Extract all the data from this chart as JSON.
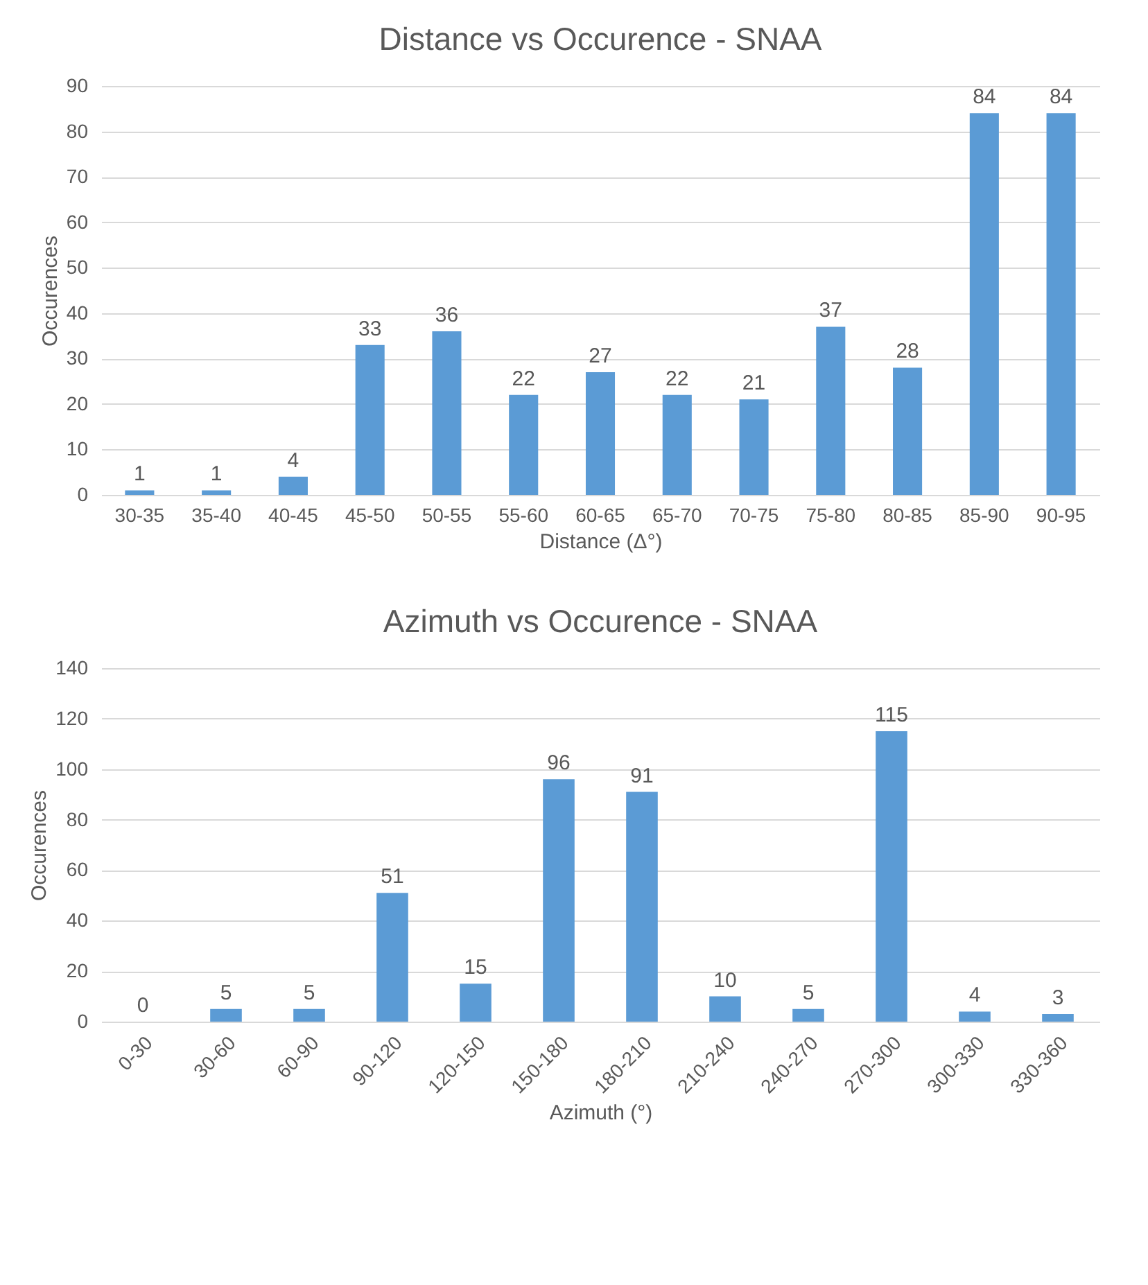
{
  "chart_data": [
    {
      "type": "bar",
      "title": "Distance vs Occurence - SNAA",
      "xlabel": "Distance (Δ°)",
      "ylabel": "Occurences",
      "categories": [
        "30-35",
        "35-40",
        "40-45",
        "45-50",
        "50-55",
        "55-60",
        "60-65",
        "65-70",
        "70-75",
        "75-80",
        "80-85",
        "85-90",
        "90-95"
      ],
      "values": [
        1,
        1,
        4,
        33,
        36,
        22,
        27,
        22,
        21,
        37,
        28,
        84,
        84
      ],
      "color": "#5b9bd5",
      "ylim": [
        0,
        90
      ],
      "yticks": [
        0,
        10,
        20,
        30,
        40,
        50,
        60,
        70,
        80,
        90
      ],
      "grid": "y",
      "data_labels": true
    },
    {
      "type": "bar",
      "title": "Azimuth vs Occurence - SNAA",
      "xlabel": "Azimuth (°)",
      "ylabel": "Occurences",
      "categories": [
        "0-30",
        "30-60",
        "60-90",
        "90-120",
        "120-150",
        "150-180",
        "180-210",
        "210-240",
        "240-270",
        "270-300",
        "300-330",
        "330-360"
      ],
      "values": [
        0,
        5,
        5,
        51,
        15,
        96,
        91,
        10,
        5,
        115,
        4,
        3
      ],
      "color": "#5b9bd5",
      "ylim": [
        0,
        140
      ],
      "yticks": [
        0,
        20,
        40,
        60,
        80,
        100,
        120,
        140
      ],
      "grid": "y",
      "data_labels": true
    }
  ]
}
